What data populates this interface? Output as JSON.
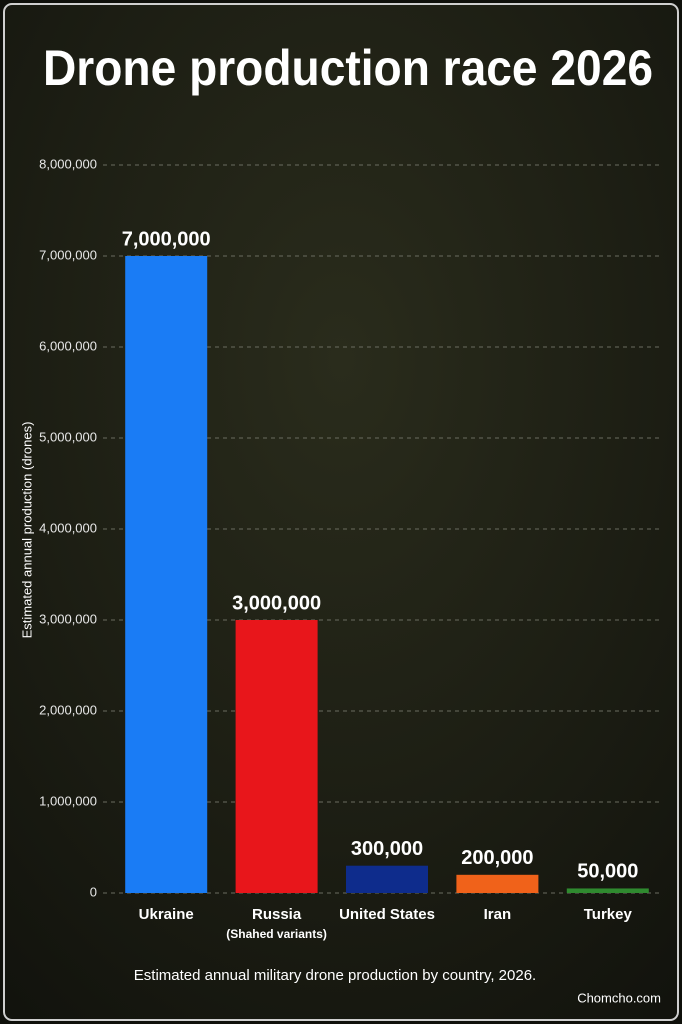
{
  "chart_data": {
    "type": "bar",
    "title": "Drone production race 2026",
    "y_label": "Estimated annual production (drones)",
    "caption": "Estimated annual military drone production by country, 2026.",
    "source": "Chomcho.com",
    "categories": [
      "Ukraine",
      "Russia",
      "United States",
      "Iran",
      "Turkey"
    ],
    "category_notes": [
      null,
      "(Shahed variants)",
      null,
      null,
      null
    ],
    "values": [
      7000000,
      3000000,
      300000,
      200000,
      50000
    ],
    "value_labels": [
      "7,000,000",
      "3,000,000",
      "300,000",
      "200,000",
      "50,000"
    ],
    "colors": [
      "#1a7cf5",
      "#e8161b",
      "#0e2c8c",
      "#f0621a",
      "#2f8a2f"
    ],
    "ylim": [
      0,
      8000000
    ],
    "yticks": [
      0,
      {
        "value": 1000000,
        "label": "1,000,000"
      },
      {
        "value": 2000000,
        "label": "2,000,000"
      },
      {
        "value": 3000000,
        "label": "3,000,000"
      },
      {
        "value": 4000000,
        "label": "4,000,000"
      },
      {
        "value": 5000000,
        "label": "5,000,000"
      },
      {
        "value": 6000000,
        "label": "6,000,000"
      },
      {
        "value": 7000000,
        "label": "7,000,000"
      },
      {
        "value": 8000000,
        "label": "8,000,000"
      }
    ],
    "grid": true
  }
}
